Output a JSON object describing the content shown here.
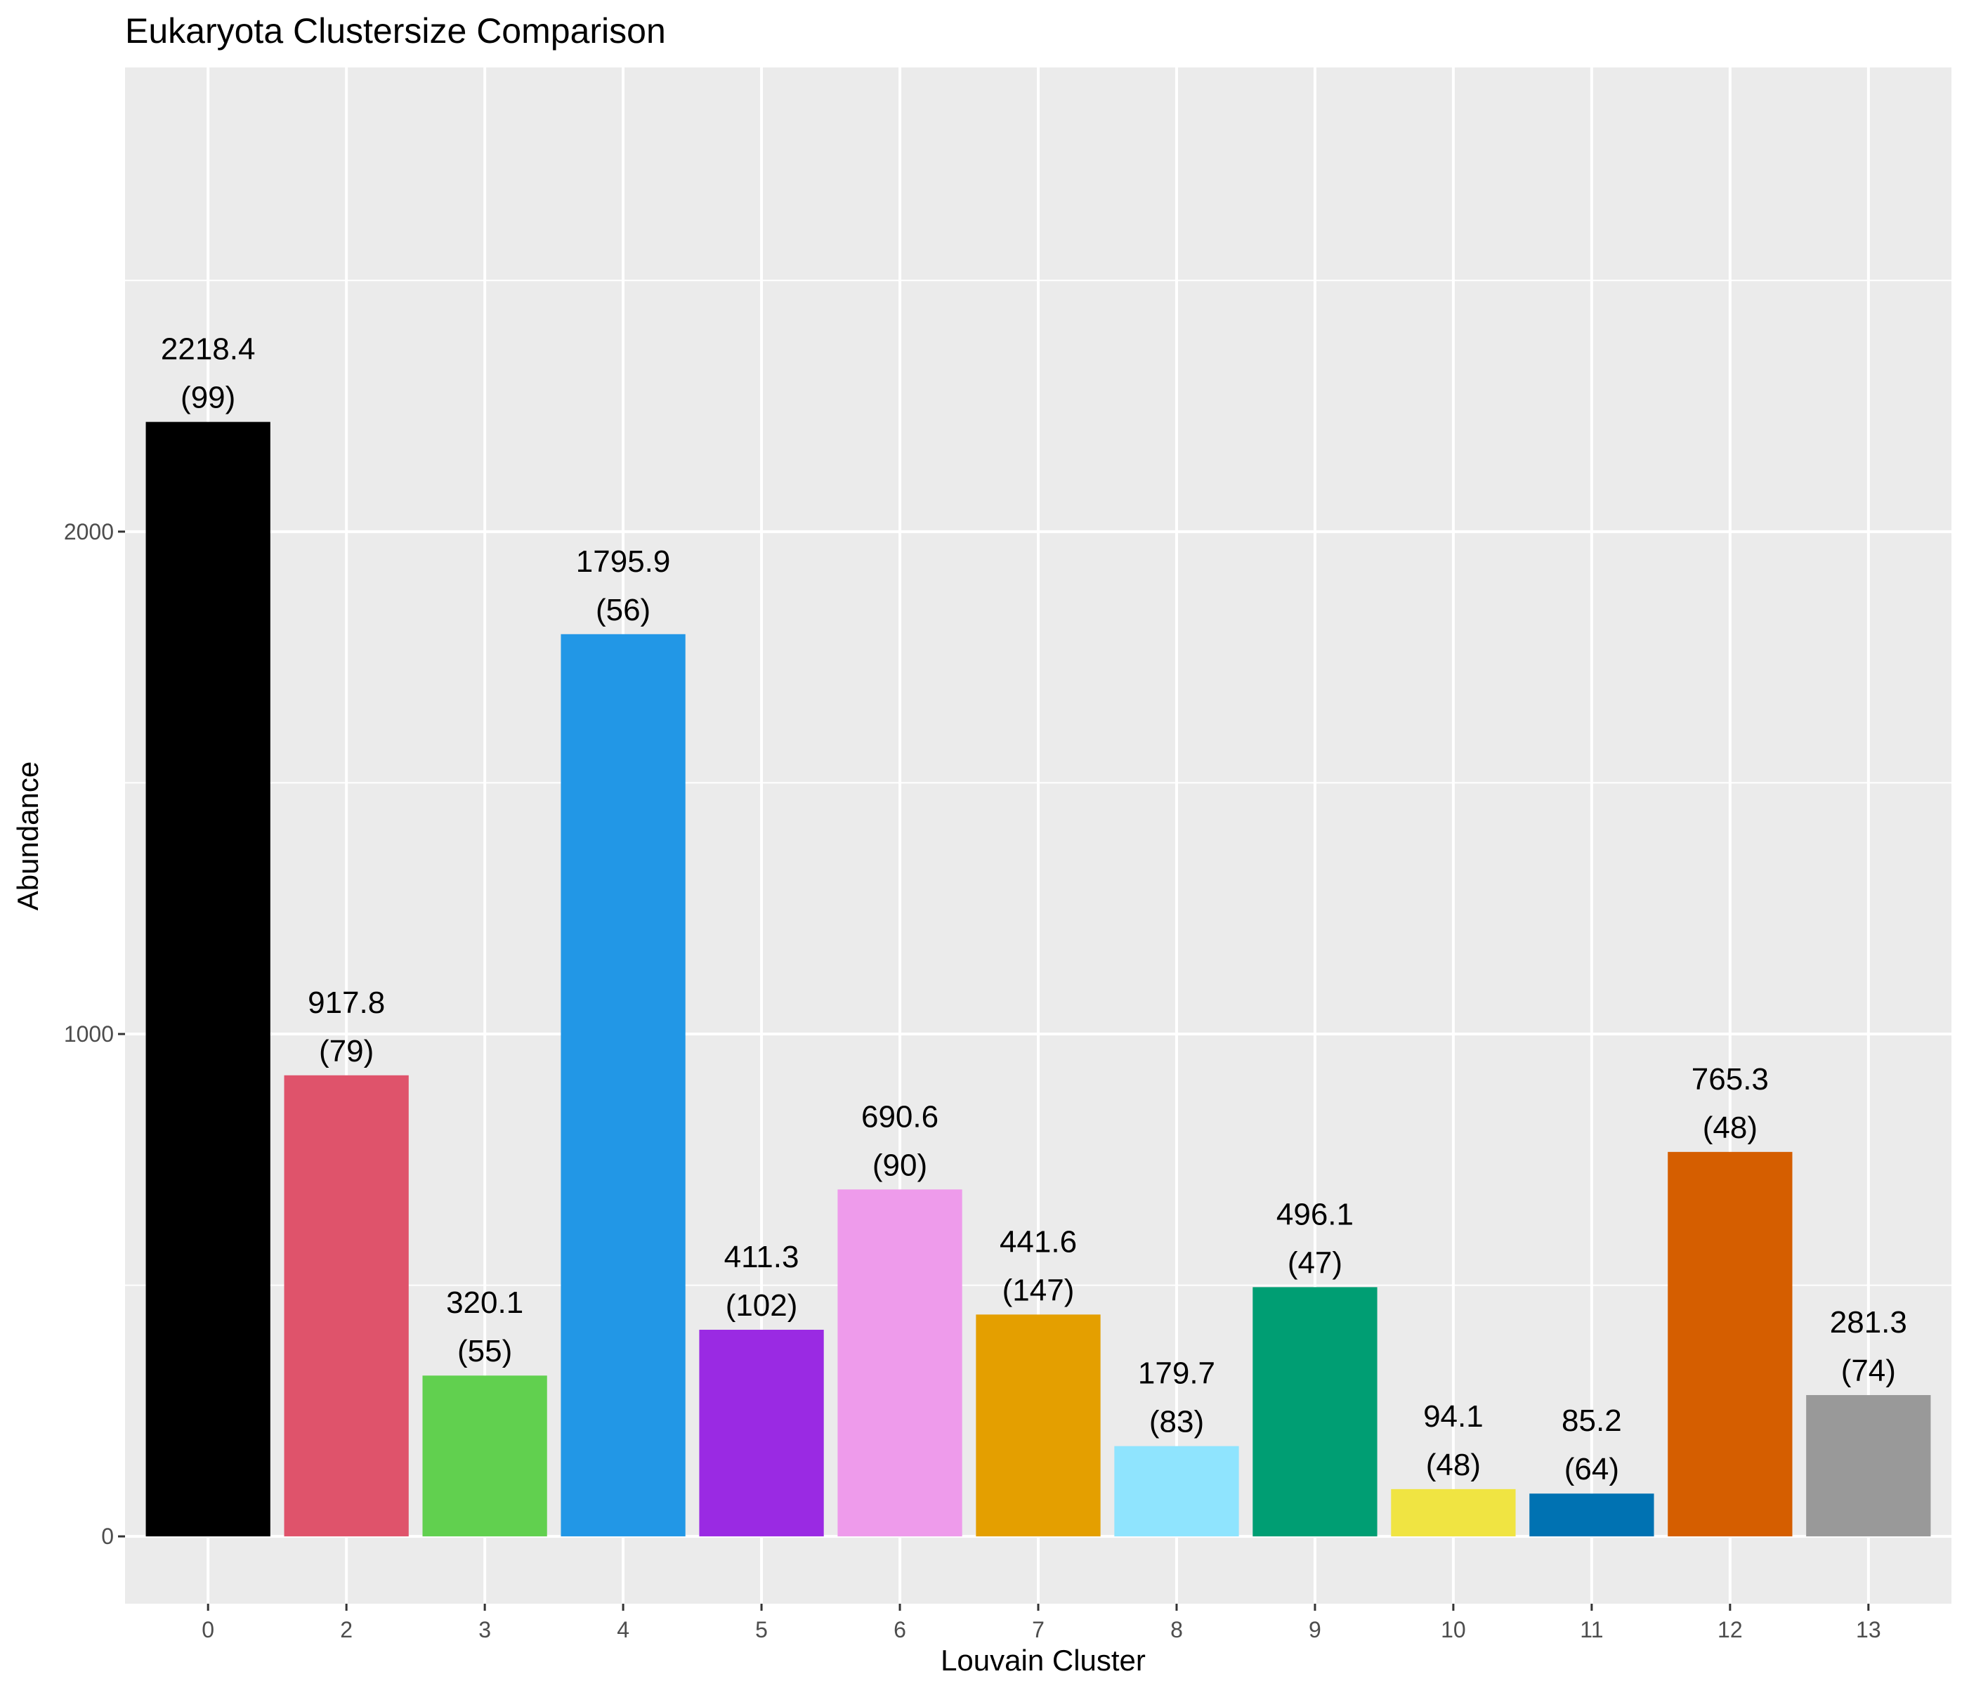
{
  "chart_data": {
    "type": "bar",
    "title": "Eukaryota Clustersize Comparison",
    "xlabel": "Louvain Cluster",
    "ylabel": "Abundance",
    "categories": [
      "0",
      "2",
      "3",
      "4",
      "5",
      "6",
      "7",
      "8",
      "9",
      "10",
      "11",
      "12",
      "13"
    ],
    "values": [
      2218.4,
      917.8,
      320.1,
      1795.9,
      411.3,
      690.6,
      441.6,
      179.7,
      496.1,
      94.1,
      85.2,
      765.3,
      281.3
    ],
    "value_labels": [
      "2218.4",
      "917.8",
      "320.1",
      "1795.9",
      "411.3",
      "690.6",
      "441.6",
      "179.7",
      "496.1",
      "94.1",
      "85.2",
      "765.3",
      "281.3"
    ],
    "counts": [
      "(99)",
      "(79)",
      "(55)",
      "(56)",
      "(102)",
      "(90)",
      "(147)",
      "(83)",
      "(47)",
      "(48)",
      "(64)",
      "(48)",
      "(74)"
    ],
    "colors": [
      "#000000",
      "#DF536B",
      "#61D04F",
      "#2297E6",
      "#9A2AE3",
      "#EE9BEB",
      "#E49F00",
      "#8FE4FE",
      "#009E73",
      "#F0E442",
      "#0072B2",
      "#D55E00",
      "#999999"
    ],
    "ylim": [
      -134,
      2924
    ],
    "yticks": [
      0,
      1000,
      2000
    ],
    "ytick_labels": [
      "0",
      "1000",
      "2000"
    ],
    "y_minor_gridlines": [
      500,
      1500,
      2500
    ],
    "grid": true,
    "legend": "none",
    "panel_background": "#EBEBEB"
  }
}
